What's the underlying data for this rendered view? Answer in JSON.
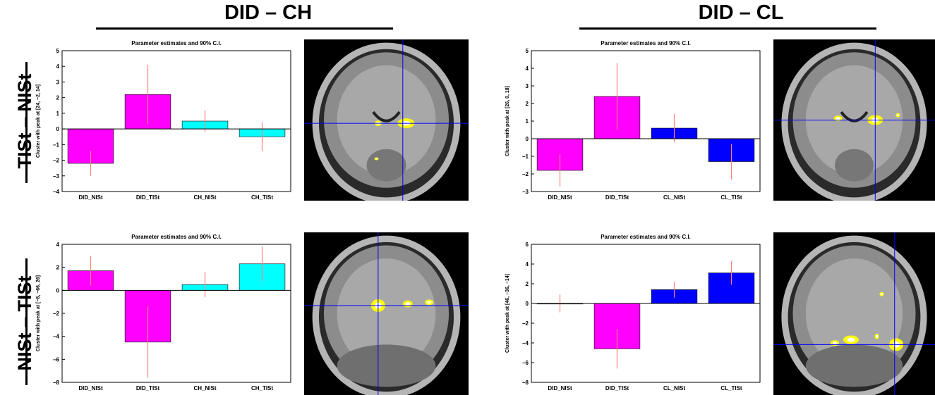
{
  "columns": [
    {
      "title": "DID – CH"
    },
    {
      "title": "DID – CL"
    }
  ],
  "rows": [
    {
      "label": "TISt – NISt"
    },
    {
      "label": "NISt – TISt"
    }
  ],
  "colors": {
    "magenta": "#ff00ff",
    "cyan": "#00ffff",
    "blue": "#0000ff",
    "errorbar": "#ff8080",
    "crosshair": "#0000ff",
    "activation": "#ffff00"
  },
  "chart_data": [
    {
      "type": "bar",
      "title": "Parameter estimates and 90% C.I.",
      "ylabel": "Cluster with peak at [24, −2, 14]",
      "ylim": [
        -4,
        5
      ],
      "yticks": [
        -4,
        -3,
        -2,
        -1,
        0,
        1,
        2,
        3,
        4,
        5
      ],
      "categories": [
        "DID_NISt",
        "DID_TISt",
        "CH_NISt",
        "CH_TISt"
      ],
      "values": [
        -2.2,
        2.2,
        0.5,
        -0.5
      ],
      "ci_low": [
        -3.0,
        0.3,
        -0.2,
        -1.4
      ],
      "ci_high": [
        -1.4,
        4.1,
        1.2,
        0.4
      ],
      "bar_colors": [
        "magenta",
        "magenta",
        "cyan",
        "cyan"
      ]
    },
    {
      "type": "bar",
      "title": "Parameter estimates and 90% C.I.",
      "ylabel": "Cluster with peak at [26, 0, 18]",
      "ylim": [
        -3,
        5
      ],
      "yticks": [
        -3,
        -2,
        -1,
        0,
        1,
        2,
        3,
        4,
        5
      ],
      "categories": [
        "DID_NISt",
        "DID_TISt",
        "CL_NISt",
        "CL_TISt"
      ],
      "values": [
        -1.8,
        2.4,
        0.6,
        -1.3
      ],
      "ci_low": [
        -2.7,
        0.5,
        -0.2,
        -2.3
      ],
      "ci_high": [
        -0.9,
        4.3,
        1.4,
        -0.3
      ],
      "bar_colors": [
        "magenta",
        "magenta",
        "blue",
        "blue"
      ]
    },
    {
      "type": "bar",
      "title": "Parameter estimates and 90% C.I.",
      "ylabel": "Cluster with peak at [−8, −66, 26]",
      "ylim": [
        -8,
        4
      ],
      "yticks": [
        -8,
        -6,
        -4,
        -2,
        0,
        2,
        4
      ],
      "categories": [
        "DID_NISt",
        "DID_TISt",
        "CH_NISt",
        "CH_TISt"
      ],
      "values": [
        1.7,
        -4.5,
        0.5,
        2.3
      ],
      "ci_low": [
        0.4,
        -7.6,
        -0.6,
        0.8
      ],
      "ci_high": [
        3.0,
        -1.4,
        1.6,
        3.8
      ],
      "bar_colors": [
        "magenta",
        "magenta",
        "cyan",
        "cyan"
      ]
    },
    {
      "type": "bar",
      "title": "Parameter estimates and 90% C.I.",
      "ylabel": "Cluster with peak at [46, −36, −14]",
      "ylim": [
        -8,
        6
      ],
      "yticks": [
        -8,
        -6,
        -4,
        -2,
        0,
        2,
        4,
        6
      ],
      "categories": [
        "DID_NISt",
        "DID_TISt",
        "CL_NISt",
        "CL_TISt"
      ],
      "values": [
        0.0,
        -4.6,
        1.4,
        3.1
      ],
      "ci_low": [
        -0.9,
        -6.6,
        0.6,
        1.9
      ],
      "ci_high": [
        0.9,
        -2.6,
        2.2,
        4.3
      ],
      "bar_colors": [
        "magenta",
        "magenta",
        "blue",
        "blue"
      ]
    }
  ]
}
